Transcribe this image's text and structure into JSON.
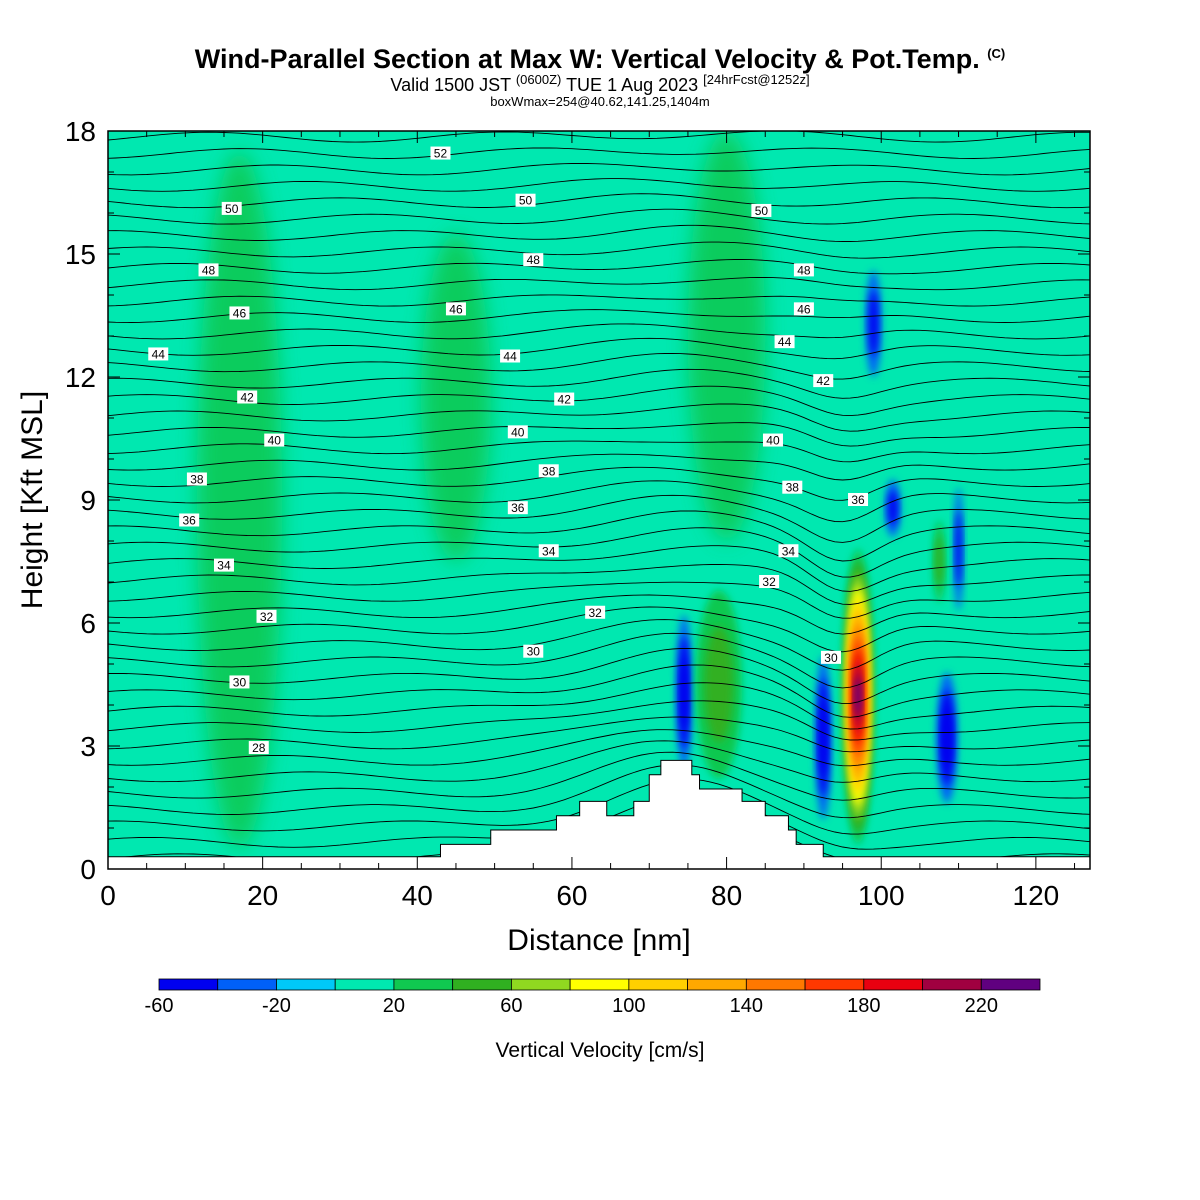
{
  "header": {
    "title": "Wind-Parallel Section at Max W: Vertical Velocity & Pot.Temp.",
    "copyright": "(C)",
    "valid_prefix": "Valid 1500 JST",
    "valid_utc": "(0600Z)",
    "valid_suffix": "TUE 1 Aug 2023",
    "forecast_info": "[24hrFcst@1252z]",
    "box_info": "boxWmax=254@40.62,141.25,1404m"
  },
  "chart_data": {
    "type": "heatmap",
    "xlabel": "Distance [nm]",
    "ylabel": "Height [Kft MSL]",
    "xlim": [
      0,
      127
    ],
    "ylim": [
      0,
      18
    ],
    "x_ticks": [
      "0",
      "20",
      "40",
      "60",
      "80",
      "100",
      "120"
    ],
    "y_ticks": [
      "0",
      "3",
      "6",
      "9",
      "12",
      "15",
      "18"
    ],
    "grid": false,
    "colorbar": {
      "label": "Vertical Velocity [cm/s]",
      "boundaries": [
        -60,
        -40,
        -20,
        0,
        20,
        40,
        60,
        80,
        100,
        120,
        140,
        160,
        180,
        200,
        220,
        240
      ],
      "tick_labels": [
        "-60",
        "-20",
        "20",
        "60",
        "100",
        "140",
        "180",
        "220"
      ],
      "colors": [
        "#0000f0",
        "#0060f8",
        "#00c8f8",
        "#00e8b0",
        "#10c850",
        "#30b020",
        "#90d820",
        "#ffff00",
        "#ffd000",
        "#ffa800",
        "#ff7800",
        "#ff3800",
        "#e80010",
        "#a00040",
        "#600080"
      ]
    },
    "background_velocity": "0 to 20",
    "terrain": [
      {
        "x": 0,
        "h": 0.3
      },
      {
        "x": 43,
        "h": 0.3
      },
      {
        "x": 43,
        "h": 0.6
      },
      {
        "x": 49.5,
        "h": 0.6
      },
      {
        "x": 49.5,
        "h": 0.95
      },
      {
        "x": 58,
        "h": 0.95
      },
      {
        "x": 58,
        "h": 1.3
      },
      {
        "x": 61,
        "h": 1.3
      },
      {
        "x": 61,
        "h": 1.65
      },
      {
        "x": 64.5,
        "h": 1.65
      },
      {
        "x": 64.5,
        "h": 1.3
      },
      {
        "x": 68,
        "h": 1.3
      },
      {
        "x": 68,
        "h": 1.65
      },
      {
        "x": 70,
        "h": 1.65
      },
      {
        "x": 70,
        "h": 2.3
      },
      {
        "x": 71.5,
        "h": 2.3
      },
      {
        "x": 71.5,
        "h": 2.65
      },
      {
        "x": 75.5,
        "h": 2.65
      },
      {
        "x": 75.5,
        "h": 2.3
      },
      {
        "x": 76.5,
        "h": 2.3
      },
      {
        "x": 76.5,
        "h": 1.95
      },
      {
        "x": 82,
        "h": 1.95
      },
      {
        "x": 82,
        "h": 1.65
      },
      {
        "x": 85,
        "h": 1.65
      },
      {
        "x": 85,
        "h": 1.3
      },
      {
        "x": 88,
        "h": 1.3
      },
      {
        "x": 88,
        "h": 0.95
      },
      {
        "x": 89,
        "h": 0.95
      },
      {
        "x": 89,
        "h": 0.6
      },
      {
        "x": 92.5,
        "h": 0.6
      },
      {
        "x": 92.5,
        "h": 0.3
      },
      {
        "x": 127,
        "h": 0.3
      }
    ],
    "velocity_features": [
      {
        "x": 97,
        "y": 4.2,
        "rx": 2.0,
        "ry": 3.6,
        "value": 254
      },
      {
        "x": 74.5,
        "y": 4.3,
        "rx": 1.0,
        "ry": 1.9,
        "value": -60
      },
      {
        "x": 92.5,
        "y": 3.2,
        "rx": 1.0,
        "ry": 2.0,
        "value": -60
      },
      {
        "x": 99,
        "y": 13.3,
        "rx": 1.0,
        "ry": 1.3,
        "value": -30
      },
      {
        "x": 101.5,
        "y": 8.8,
        "rx": 1.0,
        "ry": 0.7,
        "value": -30
      },
      {
        "x": 108.5,
        "y": 3.2,
        "rx": 1.3,
        "ry": 1.6,
        "value": -40
      },
      {
        "x": 110,
        "y": 7.8,
        "rx": 0.6,
        "ry": 1.5,
        "value": -30
      },
      {
        "x": 79,
        "y": 4.5,
        "rx": 3.0,
        "ry": 2.3,
        "value": 40
      },
      {
        "x": 107.5,
        "y": 7.5,
        "rx": 0.8,
        "ry": 1.0,
        "value": 40
      },
      {
        "x": 17,
        "y": 9.0,
        "rx": 5.5,
        "ry": 8.5,
        "value": 10
      },
      {
        "x": 45,
        "y": 11.5,
        "rx": 4.5,
        "ry": 4.0,
        "value": 10
      },
      {
        "x": 80,
        "y": 13.0,
        "rx": 5.0,
        "ry": 5.0,
        "value": 10
      }
    ],
    "isentrope_labels": [
      {
        "value": "52",
        "x": 43,
        "y": 17.45
      },
      {
        "value": "50",
        "x": 16,
        "y": 16.1
      },
      {
        "value": "50",
        "x": 54,
        "y": 16.3
      },
      {
        "value": "50",
        "x": 84.5,
        "y": 16.05
      },
      {
        "value": "48",
        "x": 13,
        "y": 14.6
      },
      {
        "value": "48",
        "x": 55,
        "y": 14.85
      },
      {
        "value": "48",
        "x": 90,
        "y": 14.6
      },
      {
        "value": "46",
        "x": 17,
        "y": 13.55
      },
      {
        "value": "46",
        "x": 45,
        "y": 13.65
      },
      {
        "value": "46",
        "x": 90,
        "y": 13.65
      },
      {
        "value": "44",
        "x": 6.5,
        "y": 12.55
      },
      {
        "value": "44",
        "x": 52,
        "y": 12.5
      },
      {
        "value": "44",
        "x": 87.5,
        "y": 12.85
      },
      {
        "value": "42",
        "x": 18,
        "y": 11.5
      },
      {
        "value": "42",
        "x": 59,
        "y": 11.45
      },
      {
        "value": "42",
        "x": 92.5,
        "y": 11.9
      },
      {
        "value": "40",
        "x": 21.5,
        "y": 10.45
      },
      {
        "value": "40",
        "x": 53,
        "y": 10.65
      },
      {
        "value": "40",
        "x": 86,
        "y": 10.45
      },
      {
        "value": "38",
        "x": 11.5,
        "y": 9.5
      },
      {
        "value": "38",
        "x": 57,
        "y": 9.7
      },
      {
        "value": "38",
        "x": 88.5,
        "y": 9.3
      },
      {
        "value": "36",
        "x": 10.5,
        "y": 8.5
      },
      {
        "value": "36",
        "x": 53,
        "y": 8.8
      },
      {
        "value": "36",
        "x": 97,
        "y": 9.0
      },
      {
        "value": "34",
        "x": 15,
        "y": 7.4
      },
      {
        "value": "34",
        "x": 57,
        "y": 7.75
      },
      {
        "value": "34",
        "x": 88,
        "y": 7.75
      },
      {
        "value": "32",
        "x": 20.5,
        "y": 6.15
      },
      {
        "value": "32",
        "x": 63,
        "y": 6.25
      },
      {
        "value": "32",
        "x": 85.5,
        "y": 7.0
      },
      {
        "value": "30",
        "x": 17,
        "y": 4.55
      },
      {
        "value": "30",
        "x": 55,
        "y": 5.3
      },
      {
        "value": "30",
        "x": 93.5,
        "y": 5.15
      },
      {
        "value": "28",
        "x": 19.5,
        "y": 2.95
      }
    ]
  }
}
